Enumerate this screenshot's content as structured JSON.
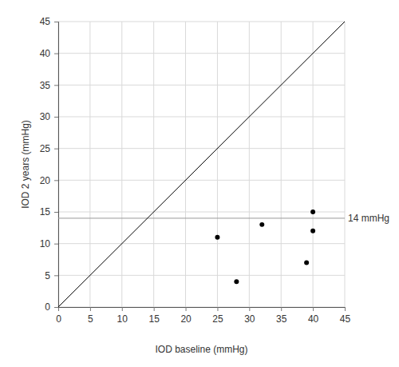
{
  "chart_data": {
    "type": "scatter",
    "x_label": "IOD baseline (mmHg)",
    "y_label": "IOD 2 years (mmHg)",
    "x": [
      25,
      28,
      32,
      39,
      40,
      40
    ],
    "values": [
      11,
      4,
      13,
      7,
      15,
      12
    ],
    "color": "#000000",
    "marker": "circle",
    "xlim": [
      0,
      45
    ],
    "ylim": [
      0,
      45
    ],
    "xticks": [
      0,
      5,
      10,
      15,
      20,
      25,
      30,
      35,
      40,
      45
    ],
    "yticks": [
      0,
      5,
      10,
      15,
      20,
      25,
      30,
      35,
      40,
      45
    ],
    "grid": true,
    "reference_line": {
      "value": 14,
      "label": "14 mmHg"
    },
    "diagonal": {
      "x": [
        0,
        45
      ],
      "values": [
        0,
        45
      ]
    }
  }
}
